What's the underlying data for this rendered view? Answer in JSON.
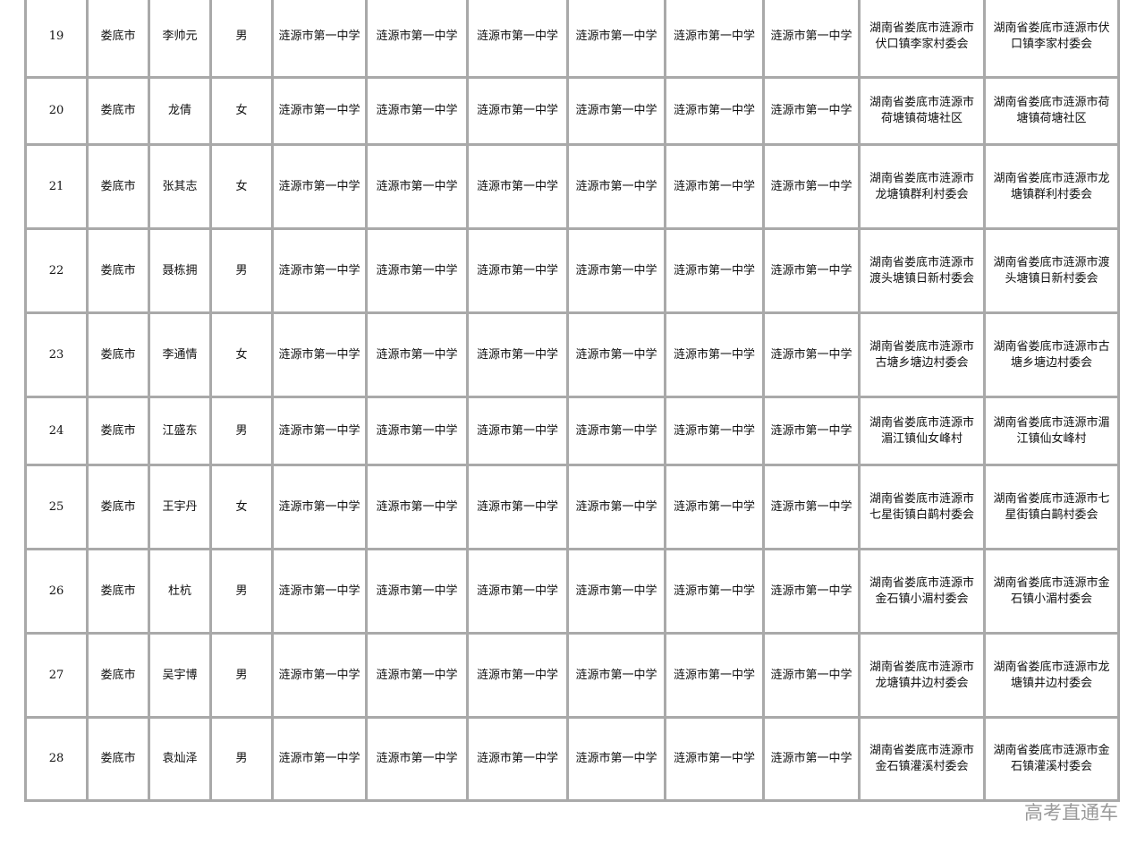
{
  "rows": [
    {
      "no": "19",
      "city": "娄底市",
      "name": "李帅元",
      "gender": "男",
      "schools": [
        "涟源市第一中学",
        "涟源市第一中学",
        "涟源市第一中学",
        "涟源市第一中学",
        "涟源市第一中学",
        "涟源市第一中学"
      ],
      "address1": "湖南省娄底市涟源市伏口镇李家村委会",
      "address2": "湖南省娄底市涟源市伏口镇李家村委会"
    },
    {
      "no": "20",
      "city": "娄底市",
      "name": "龙倩",
      "gender": "女",
      "schools": [
        "涟源市第一中学",
        "涟源市第一中学",
        "涟源市第一中学",
        "涟源市第一中学",
        "涟源市第一中学",
        "涟源市第一中学"
      ],
      "address1": "湖南省娄底市涟源市荷塘镇荷塘社区",
      "address2": "湖南省娄底市涟源市荷塘镇荷塘社区"
    },
    {
      "no": "21",
      "city": "娄底市",
      "name": "张其志",
      "gender": "女",
      "schools": [
        "涟源市第一中学",
        "涟源市第一中学",
        "涟源市第一中学",
        "涟源市第一中学",
        "涟源市第一中学",
        "涟源市第一中学"
      ],
      "address1": "湖南省娄底市涟源市龙塘镇群利村委会",
      "address2": "湖南省娄底市涟源市龙塘镇群利村委会"
    },
    {
      "no": "22",
      "city": "娄底市",
      "name": "聂栋拥",
      "gender": "男",
      "schools": [
        "涟源市第一中学",
        "涟源市第一中学",
        "涟源市第一中学",
        "涟源市第一中学",
        "涟源市第一中学",
        "涟源市第一中学"
      ],
      "address1": "湖南省娄底市涟源市渡头塘镇日新村委会",
      "address2": "湖南省娄底市涟源市渡头塘镇日新村委会"
    },
    {
      "no": "23",
      "city": "娄底市",
      "name": "李通情",
      "gender": "女",
      "schools": [
        "涟源市第一中学",
        "涟源市第一中学",
        "涟源市第一中学",
        "涟源市第一中学",
        "涟源市第一中学",
        "涟源市第一中学"
      ],
      "address1": "湖南省娄底市涟源市古塘乡塘边村委会",
      "address2": "湖南省娄底市涟源市古塘乡塘边村委会"
    },
    {
      "no": "24",
      "city": "娄底市",
      "name": "江盛东",
      "gender": "男",
      "schools": [
        "涟源市第一中学",
        "涟源市第一中学",
        "涟源市第一中学",
        "涟源市第一中学",
        "涟源市第一中学",
        "涟源市第一中学"
      ],
      "address1": "湖南省娄底市涟源市湄江镇仙女峰村",
      "address2": "湖南省娄底市涟源市湄江镇仙女峰村"
    },
    {
      "no": "25",
      "city": "娄底市",
      "name": "王宇丹",
      "gender": "女",
      "schools": [
        "涟源市第一中学",
        "涟源市第一中学",
        "涟源市第一中学",
        "涟源市第一中学",
        "涟源市第一中学",
        "涟源市第一中学"
      ],
      "address1": "湖南省娄底市涟源市七星街镇白鹋村委会",
      "address2": "湖南省娄底市涟源市七星街镇白鹋村委会"
    },
    {
      "no": "26",
      "city": "娄底市",
      "name": "杜杭",
      "gender": "男",
      "schools": [
        "涟源市第一中学",
        "涟源市第一中学",
        "涟源市第一中学",
        "涟源市第一中学",
        "涟源市第一中学",
        "涟源市第一中学"
      ],
      "address1": "湖南省娄底市涟源市金石镇小湄村委会",
      "address2": "湖南省娄底市涟源市金石镇小湄村委会"
    },
    {
      "no": "27",
      "city": "娄底市",
      "name": "吴宇博",
      "gender": "男",
      "schools": [
        "涟源市第一中学",
        "涟源市第一中学",
        "涟源市第一中学",
        "涟源市第一中学",
        "涟源市第一中学",
        "涟源市第一中学"
      ],
      "address1": "湖南省娄底市涟源市龙塘镇井边村委会",
      "address2": "湖南省娄底市涟源市龙塘镇井边村委会"
    },
    {
      "no": "28",
      "city": "娄底市",
      "name": "袁灿泽",
      "gender": "男",
      "schools": [
        "涟源市第一中学",
        "涟源市第一中学",
        "涟源市第一中学",
        "涟源市第一中学",
        "涟源市第一中学",
        "涟源市第一中学"
      ],
      "address1": "湖南省娄底市涟源市金石镇灌溪村委会",
      "address2": "湖南省娄底市涟源市金石镇灌溪村委会"
    }
  ],
  "watermark": "高考直通车"
}
